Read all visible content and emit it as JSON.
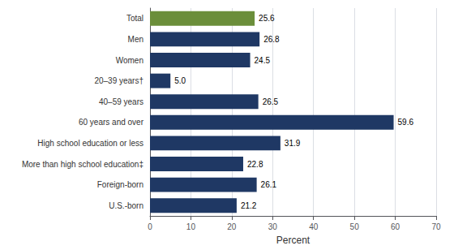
{
  "chart_data": {
    "type": "bar",
    "orientation": "horizontal",
    "categories": [
      "Total",
      "Men",
      "Women",
      "20–39 years†",
      "40–59 years",
      "60 years and over",
      "High school education or less",
      "More than high school education‡",
      "Foreign-born",
      "U.S.-born"
    ],
    "values": [
      25.6,
      26.8,
      24.5,
      5.0,
      26.5,
      59.6,
      31.9,
      22.8,
      26.1,
      21.2
    ],
    "value_labels": [
      "25.6",
      "26.8",
      "24.5",
      "5.0",
      "26.5",
      "59.6",
      "31.9",
      "22.8",
      "26.1",
      "21.2"
    ],
    "colors": [
      "#6b8e3a",
      "#1f3864",
      "#1f3864",
      "#1f3864",
      "#1f3864",
      "#1f3864",
      "#1f3864",
      "#1f3864",
      "#1f3864",
      "#1f3864"
    ],
    "xlabel": "Percent",
    "xlim": [
      0,
      70
    ],
    "xticks": [
      0,
      10,
      20,
      30,
      40,
      50,
      60,
      70
    ],
    "grid": true,
    "data_labels": true
  }
}
